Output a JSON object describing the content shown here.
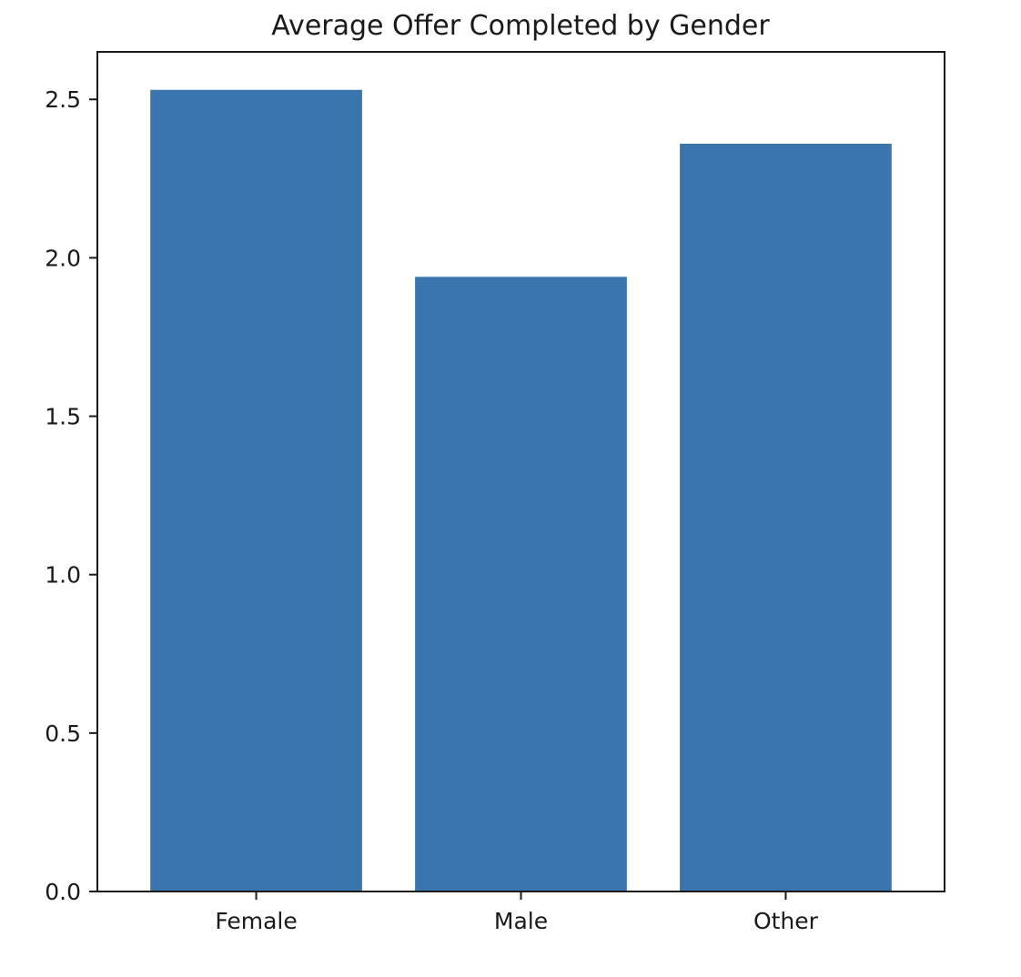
{
  "chart_data": {
    "type": "bar",
    "title": "Average Offer Completed by Gender",
    "xlabel": "",
    "ylabel": "",
    "categories": [
      "Female",
      "Male",
      "Other"
    ],
    "values": [
      2.53,
      1.94,
      2.36
    ],
    "ylim": [
      0,
      2.65
    ],
    "yticks": [
      "0.0",
      "0.5",
      "1.0",
      "1.5",
      "2.0",
      "2.5"
    ],
    "ytick_values": [
      0,
      0.5,
      1.0,
      1.5,
      2.0,
      2.5
    ],
    "bar_color": "#3a75ae",
    "grid": false,
    "legend": "none"
  }
}
